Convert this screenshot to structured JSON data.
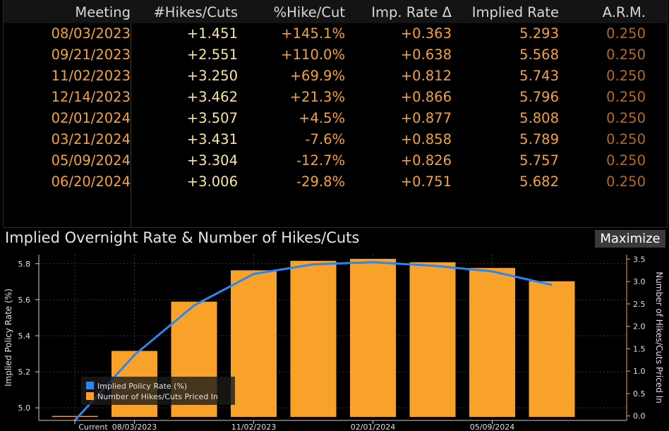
{
  "table": {
    "headers": [
      "Meeting",
      "#Hikes/Cuts",
      "%Hike/Cut",
      "Imp. Rate Δ",
      "Implied Rate",
      "A.R.M."
    ],
    "rows": [
      {
        "meeting": "08/03/2023",
        "hikes": "+1.451",
        "pct": "+145.1%",
        "delta": "+0.363",
        "rate": "5.293",
        "arm": "0.250"
      },
      {
        "meeting": "09/21/2023",
        "hikes": "+2.551",
        "pct": "+110.0%",
        "delta": "+0.638",
        "rate": "5.568",
        "arm": "0.250"
      },
      {
        "meeting": "11/02/2023",
        "hikes": "+3.250",
        "pct": "+69.9%",
        "delta": "+0.812",
        "rate": "5.743",
        "arm": "0.250"
      },
      {
        "meeting": "12/14/2023",
        "hikes": "+3.462",
        "pct": "+21.3%",
        "delta": "+0.866",
        "rate": "5.796",
        "arm": "0.250"
      },
      {
        "meeting": "02/01/2024",
        "hikes": "+3.507",
        "pct": "+4.5%",
        "delta": "+0.877",
        "rate": "5.808",
        "arm": "0.250"
      },
      {
        "meeting": "03/21/2024",
        "hikes": "+3.431",
        "pct": "-7.6%",
        "delta": "+0.858",
        "rate": "5.789",
        "arm": "0.250"
      },
      {
        "meeting": "05/09/2024",
        "hikes": "+3.304",
        "pct": "-12.7%",
        "delta": "+0.826",
        "rate": "5.757",
        "arm": "0.250"
      },
      {
        "meeting": "06/20/2024",
        "hikes": "+3.006",
        "pct": "-29.8%",
        "delta": "+0.751",
        "rate": "5.682",
        "arm": "0.250"
      }
    ]
  },
  "chart_title": "Implied Overnight Rate & Number of Hikes/Cuts",
  "maximize_label": "Maximize",
  "colors": {
    "bar": "#f9a22a",
    "line": "#2a86f5",
    "axis": "#f5a23a"
  },
  "chart_data": {
    "type": "bar",
    "categories": [
      "Current",
      "08/03/2023",
      "09/21/2023",
      "11/02/2023",
      "12/14/2023",
      "02/01/2024",
      "03/21/2024",
      "05/09/2024",
      "06/20/2024"
    ],
    "x_tick_labels": [
      "Current",
      "08/03/2023",
      "11/02/2023",
      "02/01/2024",
      "05/09/2024"
    ],
    "series": [
      {
        "name": "Number of Hikes/Cuts Priced In",
        "type": "bar",
        "axis": "right",
        "values": [
          0,
          1.451,
          2.551,
          3.25,
          3.462,
          3.507,
          3.431,
          3.304,
          3.006
        ]
      },
      {
        "name": "Implied Policy Rate (%)",
        "type": "line",
        "axis": "left",
        "values": [
          4.93,
          5.293,
          5.568,
          5.743,
          5.796,
          5.808,
          5.789,
          5.757,
          5.682
        ]
      }
    ],
    "ylabel": "Implied Policy Rate (%)",
    "y2label": "Number of Hikes/Cuts Priced In",
    "ylim": [
      4.93,
      5.85
    ],
    "y2lim": [
      -0.1,
      3.6
    ],
    "yticks": [
      5.0,
      5.2,
      5.4,
      5.6,
      5.8
    ],
    "ytick_labels": [
      "5.0",
      "5.2",
      "5.4",
      "5.6",
      "5.8"
    ],
    "y2ticks": [
      0,
      0.5,
      1,
      1.5,
      2,
      2.5,
      3,
      3.5
    ],
    "y2tick_labels": [
      "0.0",
      "0.5",
      "1.0",
      "1.5",
      "2.0",
      "2.5",
      "3.0",
      "3.5"
    ],
    "legend": "bottom-left",
    "grid": true
  }
}
